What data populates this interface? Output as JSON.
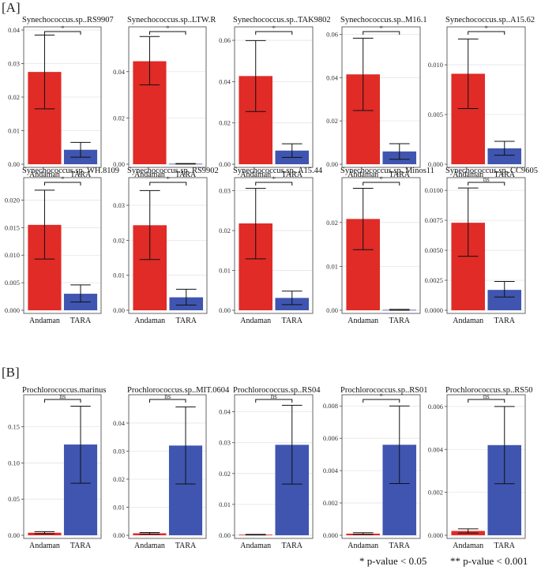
{
  "sections": [
    {
      "label": "[A]"
    },
    {
      "label": "[B]"
    }
  ],
  "legend": {
    "single": "* p-value < 0.05",
    "double": "** p-value < 0.001"
  },
  "colors": {
    "andaman": "#E02B27",
    "tara": "#3F55B0",
    "panel_border": "#555555",
    "grid": "#E5E5E5"
  },
  "chart_data": [
    {
      "type": "bar",
      "title": "Synechococcus.sp..RS9907",
      "categories": [
        "Andaman",
        "TARA"
      ],
      "values": [
        0.0275,
        0.0043
      ],
      "error_low": [
        0.0165,
        0.0021
      ],
      "error_high": [
        0.0385,
        0.0065
      ],
      "ylim": [
        0,
        0.04
      ],
      "ticks": [
        0.0,
        0.01,
        0.02,
        0.03,
        0.04
      ],
      "tick_labels": [
        "0.00",
        "0.01",
        "0.02",
        "0.03",
        "0.04"
      ],
      "significance": "*"
    },
    {
      "type": "bar",
      "title": "Synechococcus.sp..LTW.R",
      "categories": [
        "Andaman",
        "TARA"
      ],
      "values": [
        0.0445,
        0.0002
      ],
      "error_low": [
        0.0343,
        0.0001
      ],
      "error_high": [
        0.0552,
        0.0003
      ],
      "ylim": [
        0,
        0.058
      ],
      "ticks": [
        0.0,
        0.02,
        0.04
      ],
      "tick_labels": [
        "0.00",
        "0.02",
        "0.04"
      ],
      "significance": "*"
    },
    {
      "type": "bar",
      "title": "Synechococcus.sp..TAK9802",
      "categories": [
        "Andaman",
        "TARA"
      ],
      "values": [
        0.0427,
        0.0066
      ],
      "error_low": [
        0.0255,
        0.0033
      ],
      "error_high": [
        0.0599,
        0.0099
      ],
      "ylim": [
        0,
        0.065
      ],
      "ticks": [
        0.0,
        0.02,
        0.04,
        0.06
      ],
      "tick_labels": [
        "0.00",
        "0.02",
        "0.04",
        "0.06"
      ],
      "significance": "*"
    },
    {
      "type": "bar",
      "title": "Synechococcus.sp..M16.1",
      "categories": [
        "Andaman",
        "TARA"
      ],
      "values": [
        0.0415,
        0.0059
      ],
      "error_low": [
        0.0248,
        0.0023
      ],
      "error_high": [
        0.0582,
        0.0095
      ],
      "ylim": [
        0,
        0.062
      ],
      "ticks": [
        0.0,
        0.02,
        0.04,
        0.06
      ],
      "tick_labels": [
        "0.00",
        "0.02",
        "0.04",
        "0.06"
      ],
      "significance": "*"
    },
    {
      "type": "bar",
      "title": "Synechococcus.sp..A15.62",
      "categories": [
        "Andaman",
        "TARA"
      ],
      "values": [
        0.0091,
        0.0016
      ],
      "error_low": [
        0.0056,
        0.0009
      ],
      "error_high": [
        0.0126,
        0.0023
      ],
      "ylim": [
        0,
        0.0135
      ],
      "ticks": [
        0.0,
        0.005,
        0.01
      ],
      "tick_labels": [
        "0.000",
        "0.005",
        "0.010"
      ],
      "significance": "*"
    },
    {
      "type": "bar",
      "title": "Synechococcus.sp..WH.8109",
      "categories": [
        "Andaman",
        "TARA"
      ],
      "values": [
        0.0155,
        0.003
      ],
      "error_low": [
        0.0093,
        0.0015
      ],
      "error_high": [
        0.0218,
        0.0046
      ],
      "ylim": [
        0,
        0.0235
      ],
      "ticks": [
        0.0,
        0.005,
        0.01,
        0.015,
        0.02
      ],
      "tick_labels": [
        "0.000",
        "0.005",
        "0.010",
        "0.015",
        "0.020"
      ],
      "significance": "*"
    },
    {
      "type": "bar",
      "title": "Synechococcus.sp..RS9902",
      "categories": [
        "Andaman",
        "TARA"
      ],
      "values": [
        0.0243,
        0.0037
      ],
      "error_low": [
        0.0145,
        0.0015
      ],
      "error_high": [
        0.0342,
        0.006
      ],
      "ylim": [
        0,
        0.037
      ],
      "ticks": [
        0.0,
        0.01,
        0.02,
        0.03
      ],
      "tick_labels": [
        "0.00",
        "0.01",
        "0.02",
        "0.03"
      ],
      "significance": "*"
    },
    {
      "type": "bar",
      "title": "Synechococcus.sp..A15.44",
      "categories": [
        "Andaman",
        "TARA"
      ],
      "values": [
        0.0218,
        0.0031
      ],
      "error_low": [
        0.0129,
        0.0014
      ],
      "error_high": [
        0.0306,
        0.0048
      ],
      "ylim": [
        0,
        0.0325
      ],
      "ticks": [
        0.0,
        0.01,
        0.02,
        0.03
      ],
      "tick_labels": [
        "0.00",
        "0.01",
        "0.02",
        "0.03"
      ],
      "significance": "*"
    },
    {
      "type": "bar",
      "title": "Synechococcus.sp..Minos11",
      "categories": [
        "Andaman",
        "TARA"
      ],
      "values": [
        0.0208,
        0.0001
      ],
      "error_low": [
        0.0138,
        0.0
      ],
      "error_high": [
        0.0278,
        0.0002
      ],
      "ylim": [
        0,
        0.0295
      ],
      "ticks": [
        0.0,
        0.01,
        0.02
      ],
      "tick_labels": [
        "0.00",
        "0.01",
        "0.02"
      ],
      "significance": "*"
    },
    {
      "type": "bar",
      "title": "Synechococcus.sp..CC9605",
      "categories": [
        "Andaman",
        "TARA"
      ],
      "values": [
        0.0073,
        0.0017
      ],
      "error_low": [
        0.0045,
        0.0011
      ],
      "error_high": [
        0.0102,
        0.0024
      ],
      "ylim": [
        0,
        0.0108
      ],
      "ticks": [
        0.0,
        0.0025,
        0.005,
        0.0075,
        0.01
      ],
      "tick_labels": [
        "0.0000",
        "0.0025",
        "0.0050",
        "0.0075",
        "0.0100"
      ],
      "significance": "ns"
    },
    {
      "type": "bar",
      "title": "Prochlorococcus.marinus",
      "categories": [
        "Andaman",
        "TARA"
      ],
      "values": [
        0.0035,
        0.1255
      ],
      "error_low": [
        0.002,
        0.072
      ],
      "error_high": [
        0.005,
        0.1785
      ],
      "ylim": [
        0,
        0.19
      ],
      "ticks": [
        0.0,
        0.05,
        0.1,
        0.15
      ],
      "tick_labels": [
        "0.00",
        "0.05",
        "0.10",
        "0.15"
      ],
      "significance": "ns"
    },
    {
      "type": "bar",
      "title": "Prochlorococcus.sp..MIT.0604",
      "categories": [
        "Andaman",
        "TARA"
      ],
      "values": [
        0.0007,
        0.032
      ],
      "error_low": [
        0.0004,
        0.0183
      ],
      "error_high": [
        0.001,
        0.0458
      ],
      "ylim": [
        0,
        0.049
      ],
      "ticks": [
        0.0,
        0.01,
        0.02,
        0.03,
        0.04
      ],
      "tick_labels": [
        "0.00",
        "0.01",
        "0.02",
        "0.03",
        "0.04"
      ],
      "significance": "ns"
    },
    {
      "type": "bar",
      "title": "Prochlorococcus.sp..RS04",
      "categories": [
        "Andaman",
        "TARA"
      ],
      "values": [
        0.0002,
        0.0293
      ],
      "error_low": [
        0.0001,
        0.0166
      ],
      "error_high": [
        0.0003,
        0.0421
      ],
      "ylim": [
        0,
        0.0445
      ],
      "ticks": [
        0.0,
        0.01,
        0.02,
        0.03,
        0.04
      ],
      "tick_labels": [
        "0.00",
        "0.01",
        "0.02",
        "0.03",
        "0.04"
      ],
      "significance": "ns"
    },
    {
      "type": "bar",
      "title": "Prochlorococcus.sp..RS01",
      "categories": [
        "Andaman",
        "TARA"
      ],
      "values": [
        0.0001,
        0.0056
      ],
      "error_low": [
        4e-05,
        0.0032
      ],
      "error_high": [
        0.00016,
        0.008
      ],
      "ylim": [
        0,
        0.0085
      ],
      "ticks": [
        0.0,
        0.002,
        0.004,
        0.006,
        0.008
      ],
      "tick_labels": [
        "0.000",
        "0.002",
        "0.004",
        "0.006",
        "0.008"
      ],
      "significance": "*"
    },
    {
      "type": "bar",
      "title": "Prochlorococcus.sp..RS50",
      "categories": [
        "Andaman",
        "TARA"
      ],
      "values": [
        0.0002,
        0.0042
      ],
      "error_low": [
        0.0001,
        0.0024
      ],
      "error_high": [
        0.0003,
        0.006
      ],
      "ylim": [
        0,
        0.0064
      ],
      "ticks": [
        0.0,
        0.002,
        0.004,
        0.006
      ],
      "tick_labels": [
        "0.000",
        "0.002",
        "0.004",
        "0.006"
      ],
      "significance": "ns"
    }
  ]
}
